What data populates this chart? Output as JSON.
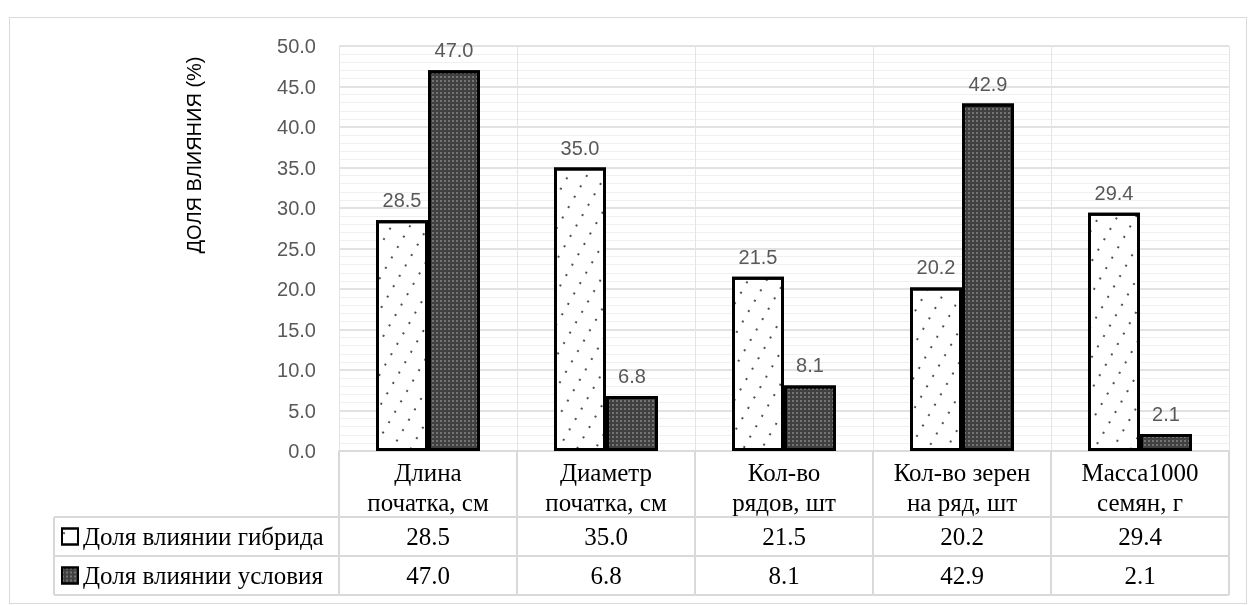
{
  "chart_data": {
    "type": "bar",
    "categories": [
      "Длина початка, см",
      "Диаметр початка, см",
      "Кол-во рядов, шт",
      "Кол-во зерен на ряд, шт",
      "Масса1000 семян, г"
    ],
    "series": [
      {
        "name": "Доля влиянии гибрида",
        "color": "#ffffff",
        "values": [
          28.5,
          35.0,
          21.5,
          20.2,
          29.4
        ],
        "value_labels": [
          "28.5",
          "35.0",
          "21.5",
          "20.2",
          "29.4"
        ]
      },
      {
        "name": "Доля влиянии условия",
        "color": "#404040",
        "values": [
          47.0,
          6.8,
          8.1,
          42.9,
          2.1
        ],
        "value_labels": [
          "47.0",
          "6.8",
          "8.1",
          "42.9",
          "2.1"
        ]
      }
    ],
    "ylabel": "ДОЛЯ ВЛИЯНИЯ (%)",
    "ylim": [
      0,
      50
    ],
    "yticks": [
      {
        "value": 0,
        "label": "0.0"
      },
      {
        "value": 5,
        "label": "5.0"
      },
      {
        "value": 10,
        "label": "10.0"
      },
      {
        "value": 15,
        "label": "15.0"
      },
      {
        "value": 20,
        "label": "20.0"
      },
      {
        "value": 25,
        "label": "25.0"
      },
      {
        "value": 30,
        "label": "30.0"
      },
      {
        "value": 35,
        "label": "35.0"
      },
      {
        "value": 40,
        "label": "40.0"
      },
      {
        "value": 45,
        "label": "45.0"
      },
      {
        "value": 50,
        "label": "50.0"
      }
    ],
    "grid": true,
    "legend": "bottom left"
  }
}
